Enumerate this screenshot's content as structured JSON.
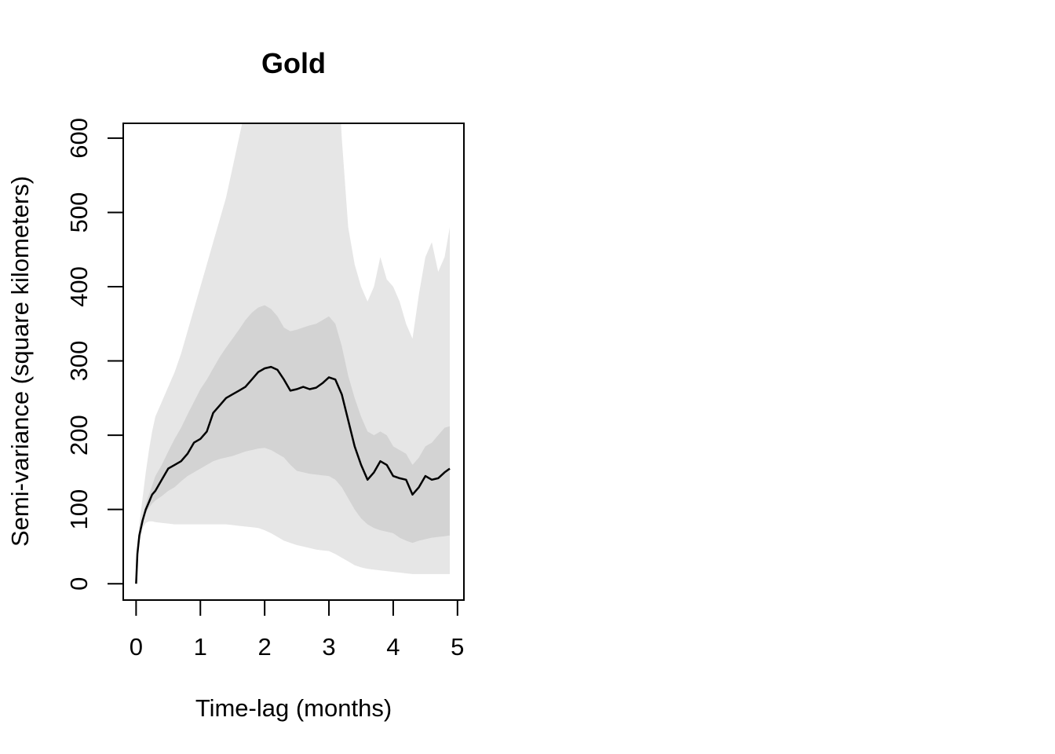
{
  "chart_data": {
    "type": "line",
    "title": "Gold",
    "xlabel": "Time-lag (months)",
    "ylabel": "Semi-variance (square kilometers)",
    "xlim": [
      -0.2,
      5.1
    ],
    "ylim": [
      -22,
      620
    ],
    "xticks": [
      0,
      1,
      2,
      3,
      4,
      5
    ],
    "yticks": [
      0,
      100,
      200,
      300,
      400,
      500,
      600
    ],
    "grid": false,
    "legend": "none",
    "colors": {
      "line": "#000000",
      "inner_band": "#d3d3d3",
      "outer_band": "#e6e6e6",
      "axis": "#000000"
    },
    "series": [
      {
        "role": "semi-variance",
        "x": [
          0.0,
          0.02,
          0.05,
          0.1,
          0.15,
          0.2,
          0.25,
          0.3,
          0.4,
          0.5,
          0.6,
          0.7,
          0.8,
          0.9,
          1.0,
          1.1,
          1.2,
          1.3,
          1.4,
          1.5,
          1.6,
          1.7,
          1.8,
          1.9,
          2.0,
          2.1,
          2.2,
          2.3,
          2.4,
          2.5,
          2.6,
          2.7,
          2.8,
          2.9,
          3.0,
          3.1,
          3.2,
          3.3,
          3.4,
          3.5,
          3.6,
          3.7,
          3.8,
          3.9,
          4.0,
          4.1,
          4.2,
          4.3,
          4.4,
          4.5,
          4.6,
          4.7,
          4.8,
          4.88
        ],
        "values": [
          0,
          40,
          65,
          85,
          100,
          110,
          120,
          125,
          140,
          155,
          160,
          165,
          175,
          190,
          195,
          205,
          230,
          240,
          250,
          255,
          260,
          265,
          275,
          285,
          290,
          292,
          288,
          275,
          260,
          262,
          265,
          262,
          264,
          270,
          278,
          275,
          255,
          220,
          185,
          160,
          140,
          150,
          165,
          160,
          145,
          142,
          140,
          120,
          130,
          145,
          140,
          142,
          150,
          155
        ],
        "lower_inner": [
          0,
          38,
          60,
          80,
          95,
          102,
          108,
          112,
          118,
          125,
          130,
          138,
          145,
          150,
          155,
          160,
          165,
          168,
          170,
          172,
          175,
          178,
          180,
          182,
          183,
          180,
          175,
          170,
          160,
          152,
          150,
          148,
          147,
          146,
          145,
          140,
          130,
          115,
          100,
          88,
          80,
          75,
          72,
          70,
          68,
          62,
          58,
          55,
          58,
          60,
          62,
          63,
          64,
          65
        ],
        "upper_inner": [
          0,
          42,
          70,
          90,
          108,
          120,
          132,
          145,
          160,
          178,
          195,
          210,
          228,
          245,
          262,
          275,
          290,
          305,
          318,
          330,
          342,
          355,
          365,
          372,
          375,
          370,
          360,
          345,
          340,
          342,
          345,
          348,
          350,
          355,
          360,
          350,
          320,
          280,
          250,
          225,
          205,
          200,
          205,
          200,
          185,
          180,
          175,
          160,
          170,
          185,
          190,
          200,
          210,
          212
        ],
        "lower_outer": [
          0,
          36,
          55,
          75,
          82,
          84,
          84,
          83,
          82,
          81,
          80,
          80,
          80,
          80,
          80,
          80,
          80,
          80,
          80,
          79,
          78,
          77,
          76,
          75,
          72,
          68,
          63,
          58,
          55,
          52,
          50,
          48,
          46,
          45,
          44,
          40,
          35,
          30,
          25,
          22,
          20,
          19,
          18,
          17,
          16,
          15,
          14,
          13,
          13,
          13,
          13,
          13,
          13,
          13
        ],
        "upper_outer": [
          0,
          45,
          80,
          115,
          150,
          180,
          205,
          225,
          245,
          265,
          285,
          310,
          340,
          370,
          400,
          430,
          460,
          490,
          520,
          560,
          600,
          640,
          680,
          720,
          760,
          790,
          800,
          790,
          780,
          800,
          820,
          840,
          860,
          880,
          900,
          760,
          600,
          480,
          430,
          400,
          380,
          400,
          440,
          410,
          400,
          380,
          350,
          330,
          390,
          440,
          460,
          420,
          440,
          480
        ]
      }
    ]
  }
}
